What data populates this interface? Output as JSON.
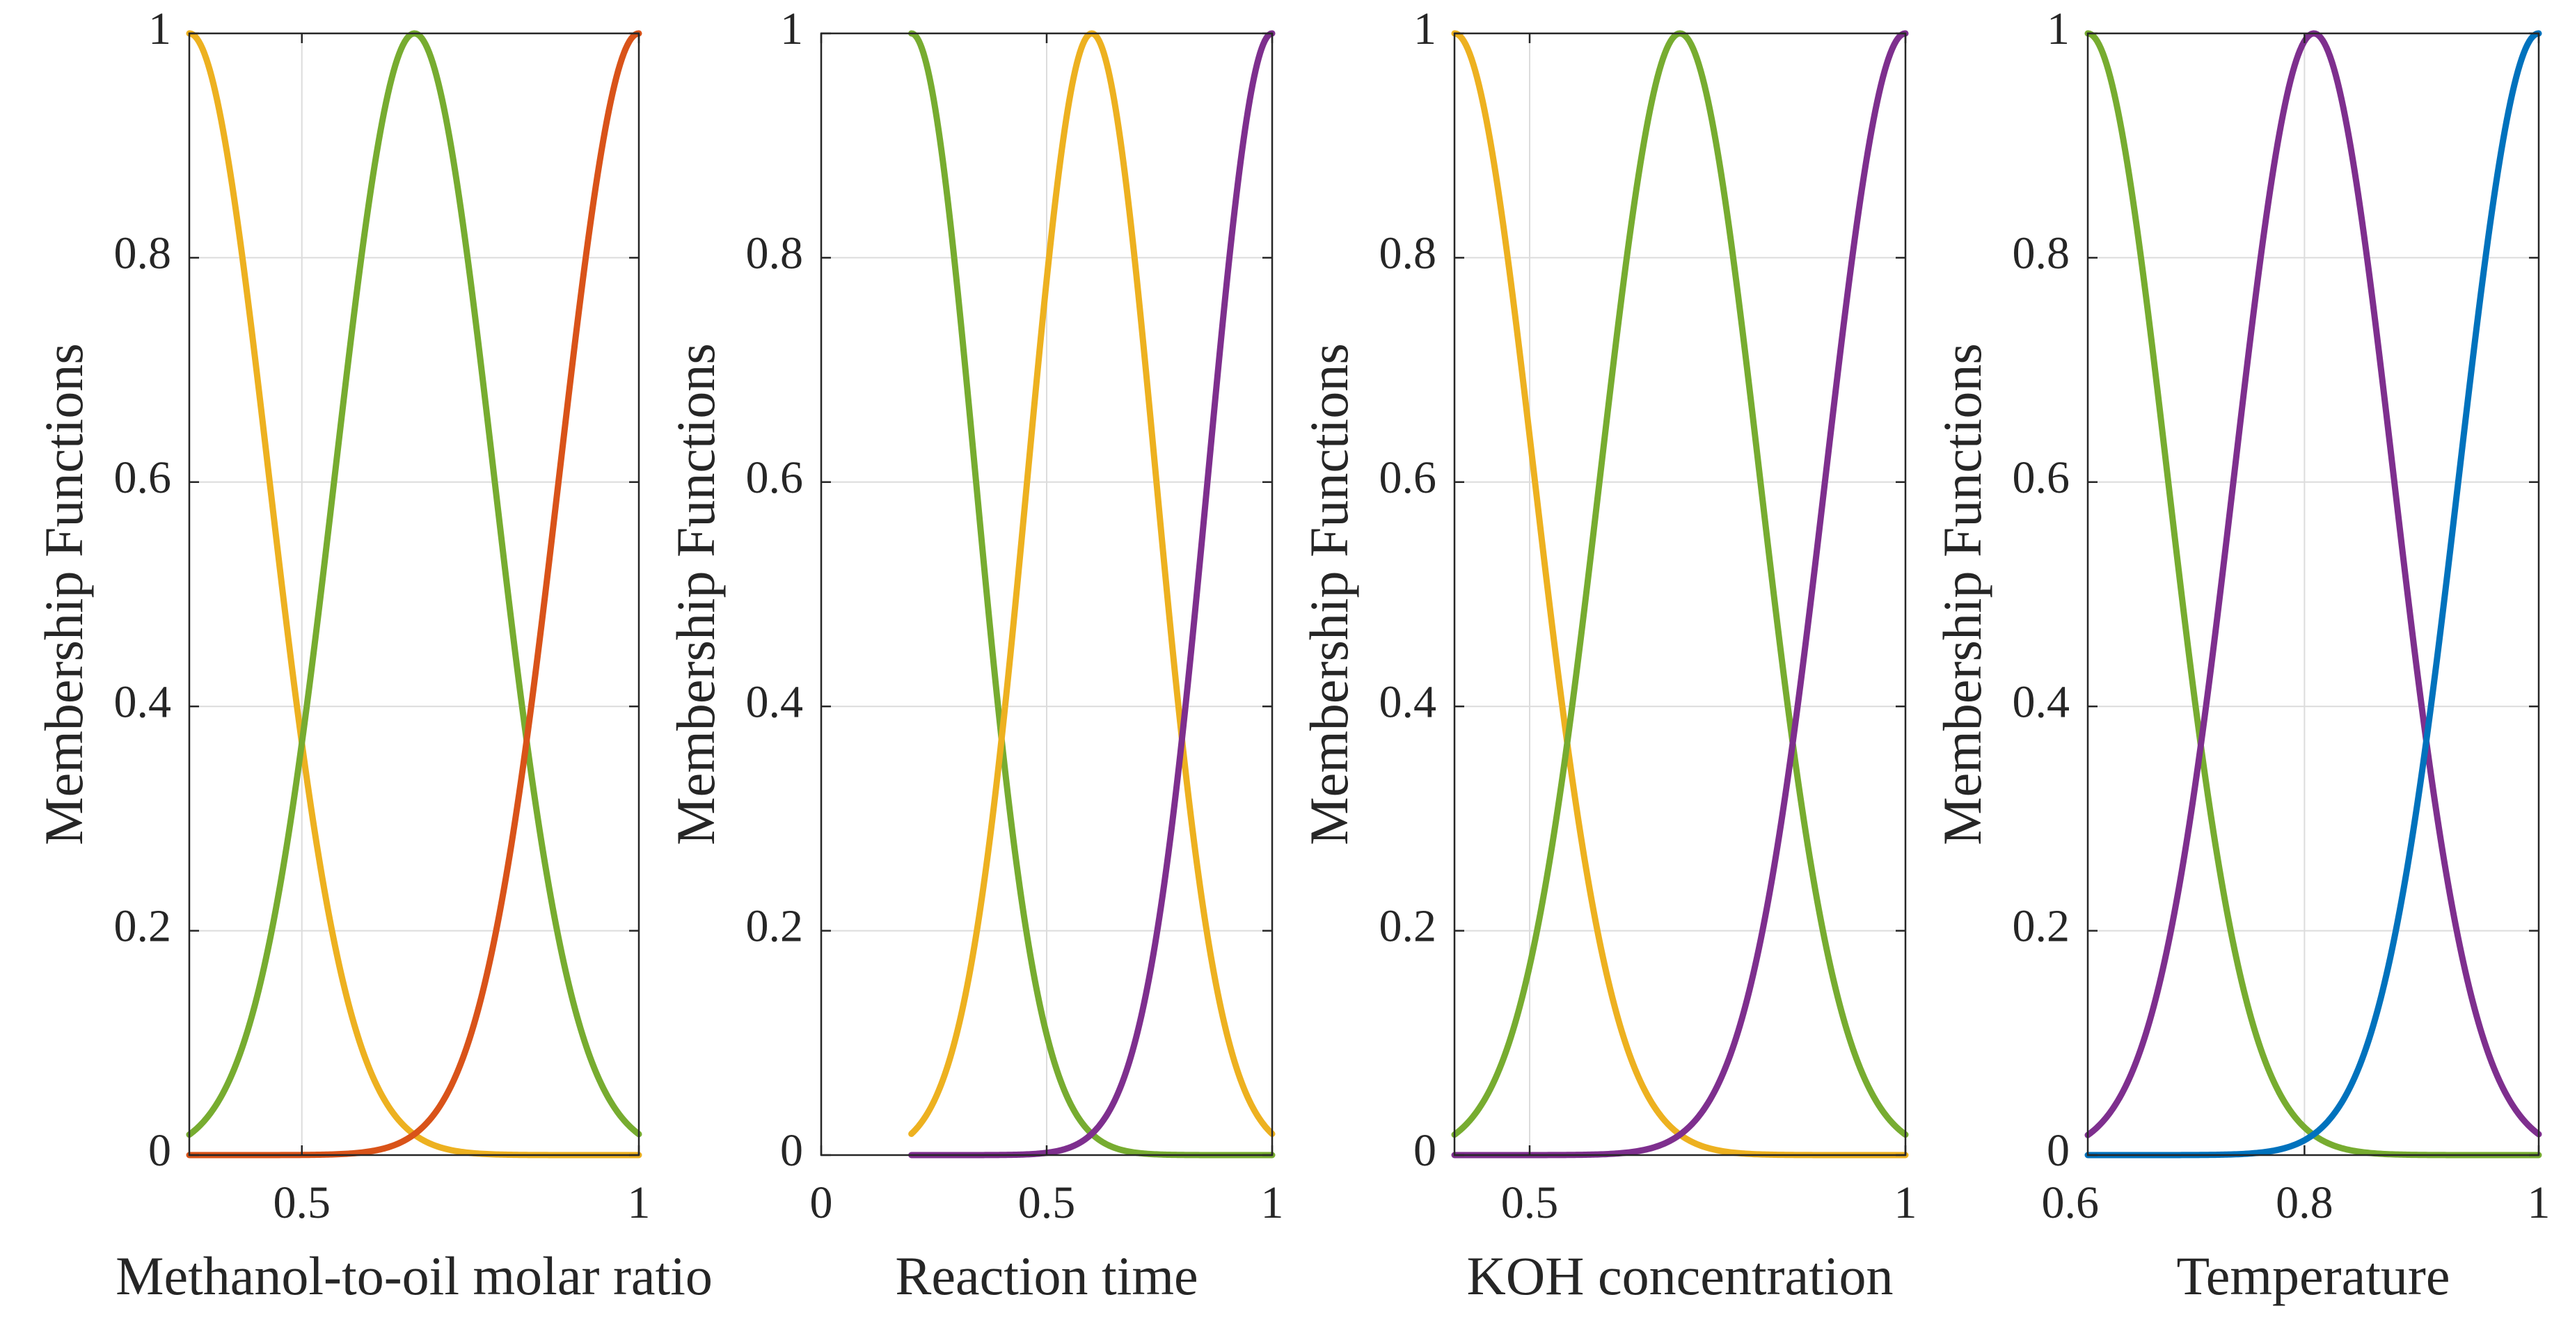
{
  "chart_data": [
    {
      "type": "line",
      "xlabel": "Methanol-to-oil molar ratio",
      "ylabel": "Membership Functions",
      "xlim": [
        0.333,
        1
      ],
      "ylim": [
        0,
        1
      ],
      "xticks": [
        0.5,
        1
      ],
      "xtick_labels": [
        "0.5",
        "1"
      ],
      "yticks": [
        0,
        0.2,
        0.4,
        0.6,
        0.8,
        1
      ],
      "ytick_labels": [
        "0",
        "0.2",
        "0.4",
        "0.6",
        "0.8",
        "1"
      ],
      "grid": true,
      "series": [
        {
          "shape": "gaussian",
          "center": 0.333,
          "sigma": 0.118,
          "x_range": [
            0.333,
            1
          ],
          "color": "#EDB120"
        },
        {
          "shape": "gaussian",
          "center": 0.667,
          "sigma": 0.118,
          "x_range": [
            0.333,
            1
          ],
          "color": "#77AC30"
        },
        {
          "shape": "gaussian",
          "center": 1.0,
          "sigma": 0.118,
          "x_range": [
            0.333,
            1
          ],
          "color": "#D95319"
        }
      ]
    },
    {
      "type": "line",
      "xlabel": "Reaction time",
      "ylabel": "Membership Functions",
      "xlim": [
        0,
        1
      ],
      "ylim": [
        0,
        1
      ],
      "xticks": [
        0,
        0.5,
        1
      ],
      "xtick_labels": [
        "0",
        "0.5",
        "1"
      ],
      "yticks": [
        0,
        0.2,
        0.4,
        0.6,
        0.8,
        1
      ],
      "ytick_labels": [
        "0",
        "0.2",
        "0.4",
        "0.6",
        "0.8",
        "1"
      ],
      "grid": true,
      "series": [
        {
          "shape": "gaussian",
          "center": 0.2,
          "sigma": 0.142,
          "x_range": [
            0.2,
            1
          ],
          "color": "#77AC30"
        },
        {
          "shape": "gaussian",
          "center": 0.6,
          "sigma": 0.142,
          "x_range": [
            0.2,
            1
          ],
          "color": "#EDB120"
        },
        {
          "shape": "gaussian",
          "center": 1.0,
          "sigma": 0.142,
          "x_range": [
            0.2,
            1
          ],
          "color": "#7E2F8E"
        }
      ]
    },
    {
      "type": "line",
      "xlabel": "KOH concentration",
      "ylabel": "Membership Functions",
      "xlim": [
        0.4,
        1
      ],
      "ylim": [
        0,
        1
      ],
      "xticks": [
        0.5,
        1
      ],
      "xtick_labels": [
        "0.5",
        "1"
      ],
      "yticks": [
        0,
        0.2,
        0.4,
        0.6,
        0.8,
        1
      ],
      "ytick_labels": [
        "0",
        "0.2",
        "0.4",
        "0.6",
        "0.8",
        "1"
      ],
      "grid": true,
      "series": [
        {
          "shape": "gaussian",
          "center": 0.4,
          "sigma": 0.106,
          "x_range": [
            0.4,
            1
          ],
          "color": "#EDB120"
        },
        {
          "shape": "gaussian",
          "center": 0.7,
          "sigma": 0.106,
          "x_range": [
            0.4,
            1
          ],
          "color": "#77AC30"
        },
        {
          "shape": "gaussian",
          "center": 1.0,
          "sigma": 0.106,
          "x_range": [
            0.4,
            1
          ],
          "color": "#7E2F8E"
        }
      ]
    },
    {
      "type": "line",
      "xlabel": "Temperature",
      "ylabel": "Membership Functions",
      "xlim": [
        0.615,
        1
      ],
      "ylim": [
        0,
        1
      ],
      "xticks": [
        0.6,
        0.8,
        1
      ],
      "xtick_labels": [
        "0.6",
        "0.8",
        "1"
      ],
      "yticks": [
        0,
        0.2,
        0.4,
        0.6,
        0.8,
        1
      ],
      "ytick_labels": [
        "0",
        "0.2",
        "0.4",
        "0.6",
        "0.8",
        "1"
      ],
      "grid": true,
      "series": [
        {
          "shape": "gaussian",
          "center": 0.615,
          "sigma": 0.068,
          "x_range": [
            0.615,
            1
          ],
          "color": "#77AC30"
        },
        {
          "shape": "gaussian",
          "center": 0.808,
          "sigma": 0.068,
          "x_range": [
            0.615,
            1
          ],
          "color": "#7E2F8E"
        },
        {
          "shape": "gaussian",
          "center": 1.0,
          "sigma": 0.068,
          "x_range": [
            0.615,
            1
          ],
          "color": "#0072BD"
        }
      ]
    }
  ]
}
